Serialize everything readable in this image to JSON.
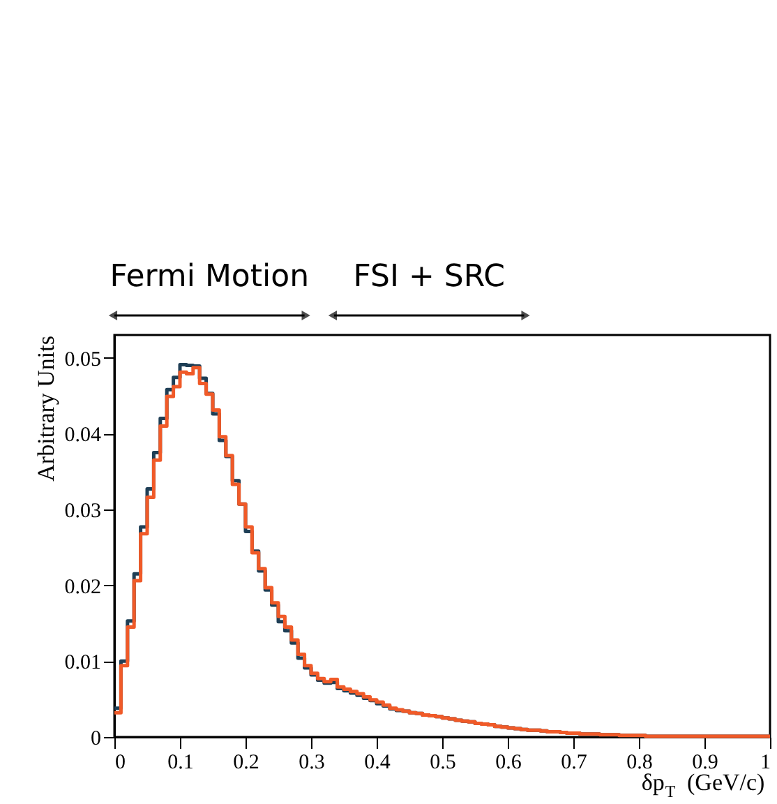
{
  "chart_data": {
    "type": "histogram",
    "xlabel": "δp$_{T}$ (GeV/c)",
    "ylabel": "Arbitrary Units",
    "annotations": [
      "Fermi Motion",
      "FSI + SRC"
    ],
    "bins": [
      0,
      0.01,
      0.02,
      0.03,
      0.04,
      0.05,
      0.06,
      0.07,
      0.08,
      0.09,
      0.1,
      0.11,
      0.12,
      0.13,
      0.14,
      0.15,
      0.16,
      0.17,
      0.18,
      0.19,
      0.2,
      0.21,
      0.22,
      0.23,
      0.24,
      0.25,
      0.26,
      0.27,
      0.28,
      0.29,
      0.3,
      0.31,
      0.32,
      0.33,
      0.34,
      0.35,
      0.36,
      0.37,
      0.38,
      0.39,
      0.4,
      0.41,
      0.42,
      0.43,
      0.44,
      0.45,
      0.46,
      0.47,
      0.48,
      0.49,
      0.5,
      0.51,
      0.52,
      0.53,
      0.54,
      0.55,
      0.56,
      0.57,
      0.58,
      0.59,
      0.6,
      0.61,
      0.62,
      0.63,
      0.64,
      0.65,
      0.66,
      0.67,
      0.68,
      0.69,
      0.7,
      0.71,
      0.72,
      0.73,
      0.74,
      0.75,
      0.76,
      0.77,
      0.78,
      0.79,
      0.8,
      0.81,
      0.82,
      0.83,
      0.84,
      0.85,
      0.86,
      0.87,
      0.88,
      0.89,
      0.9,
      0.91,
      0.92,
      0.93,
      0.94,
      0.95,
      0.96,
      0.97,
      0.98,
      0.99,
      1
    ],
    "series": [
      {
        "color": "#1f3f56",
        "values": [
          0.0038,
          0.01,
          0.0153,
          0.0215,
          0.0277,
          0.0327,
          0.0375,
          0.042,
          0.0458,
          0.0474,
          0.0491,
          0.049,
          0.0489,
          0.0473,
          0.0453,
          0.0426,
          0.0391,
          0.037,
          0.0338,
          0.0307,
          0.0271,
          0.0245,
          0.0219,
          0.0194,
          0.0174,
          0.0152,
          0.014,
          0.0124,
          0.0104,
          0.0091,
          0.0082,
          0.0075,
          0.0071,
          0.0072,
          0.0064,
          0.0061,
          0.0058,
          0.0055,
          0.0051,
          0.0048,
          0.0044,
          0.0041,
          0.0037,
          0.0035,
          0.0034,
          0.0032,
          0.0031,
          0.0029,
          0.0028,
          0.0027,
          0.0025,
          0.0024,
          0.0022,
          0.0021,
          0.002,
          0.0018,
          0.0017,
          0.0016,
          0.0014,
          0.0013,
          0.0012,
          0.0011,
          0.001,
          0.0009,
          0.0009,
          0.0008,
          0.0007,
          0.0007,
          0.0006,
          0.0005,
          0.0005,
          0.0004,
          0.0004,
          0.0004,
          0.0003,
          0.0003,
          0.0003,
          0.0002,
          0.0002,
          0.0002,
          0.0002,
          0.0001,
          0.0001,
          0.0001,
          0.0001,
          0.0001,
          0.0001,
          0.0001,
          0.0001,
          0.0001,
          0.0001,
          0.0001,
          0.0001,
          0.0001,
          0.0001,
          0.0001,
          0.0001,
          0.0001,
          0.0001,
          0.0001
        ]
      },
      {
        "color": "#f05a28",
        "values": [
          0.0032,
          0.0094,
          0.0145,
          0.0206,
          0.0268,
          0.0316,
          0.0365,
          0.041,
          0.0449,
          0.0462,
          0.0481,
          0.0479,
          0.0487,
          0.0466,
          0.0452,
          0.0431,
          0.0396,
          0.0371,
          0.0333,
          0.0307,
          0.0277,
          0.0243,
          0.0222,
          0.0197,
          0.0177,
          0.0159,
          0.0145,
          0.0128,
          0.0109,
          0.0094,
          0.0084,
          0.0077,
          0.0073,
          0.0076,
          0.0066,
          0.0063,
          0.006,
          0.0057,
          0.0053,
          0.0049,
          0.0046,
          0.0042,
          0.0038,
          0.0036,
          0.0034,
          0.0032,
          0.0031,
          0.0029,
          0.0028,
          0.0027,
          0.0025,
          0.0024,
          0.0022,
          0.0021,
          0.002,
          0.0018,
          0.0017,
          0.0016,
          0.0014,
          0.0013,
          0.0012,
          0.0011,
          0.001,
          0.0009,
          0.0009,
          0.0008,
          0.0007,
          0.0007,
          0.0006,
          0.0005,
          0.0005,
          0.0004,
          0.0004,
          0.0004,
          0.0003,
          0.0003,
          0.0003,
          0.0002,
          0.0002,
          0.0002,
          0.0002,
          0.0001,
          0.0001,
          0.0001,
          0.0001,
          0.0001,
          0.0001,
          0.0001,
          0.0001,
          0.0001,
          0.0001,
          0.0001,
          0.0001,
          0.0001,
          0.0001,
          0.0001,
          0.0001,
          0.0001,
          0.0001,
          0.0001
        ]
      }
    ],
    "xlim": [
      0,
      1
    ],
    "xticks": [
      0,
      0.1,
      0.2,
      0.3,
      0.4,
      0.5,
      0.6,
      0.7,
      0.8,
      0.9,
      1
    ],
    "ylim": [
      0,
      0.053
    ],
    "yticks": [
      0,
      0.01,
      0.02,
      0.03,
      0.04,
      0.05
    ],
    "grid": false
  }
}
